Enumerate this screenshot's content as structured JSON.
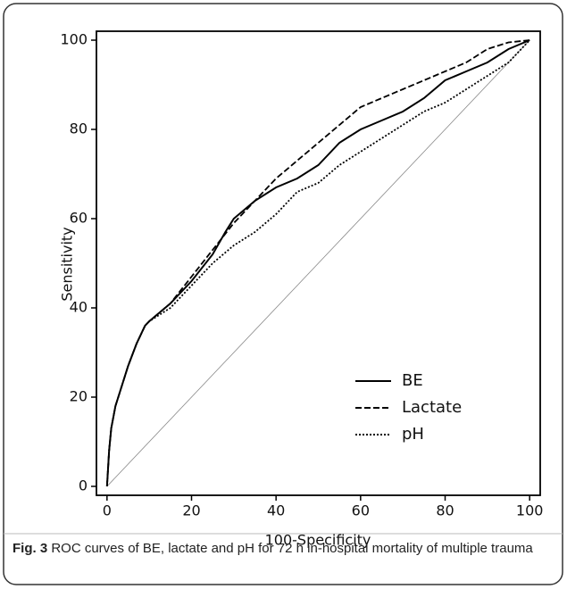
{
  "chart_data": {
    "type": "line",
    "xlabel": "100-Specificity",
    "ylabel": "Sensitivity",
    "xlim": [
      -2.5,
      102.5
    ],
    "ylim": [
      -2,
      102
    ],
    "xticks": [
      0,
      20,
      40,
      60,
      80,
      100
    ],
    "yticks": [
      0,
      20,
      40,
      60,
      80,
      100
    ],
    "legend": "lower right",
    "series": [
      {
        "name": "BE",
        "color": "#000000",
        "line_style": "solid",
        "x": [
          0,
          0.5,
          1,
          2,
          3,
          5,
          7,
          9,
          10,
          15,
          20,
          25,
          28,
          30,
          35,
          40,
          45,
          50,
          55,
          60,
          65,
          70,
          75,
          80,
          85,
          90,
          95,
          100
        ],
        "values": [
          0,
          8,
          13,
          18,
          21,
          27,
          32,
          36,
          37,
          41,
          46,
          52,
          57,
          60,
          64,
          67,
          69,
          72,
          77,
          80,
          82,
          84,
          87,
          91,
          93,
          95,
          98,
          100
        ]
      },
      {
        "name": "Lactate",
        "color": "#000000",
        "line_style": "dashed",
        "x": [
          0,
          0.5,
          1,
          2,
          3,
          5,
          7,
          9,
          10,
          15,
          20,
          25,
          30,
          35,
          40,
          45,
          50,
          55,
          60,
          65,
          70,
          75,
          80,
          85,
          90,
          95,
          100
        ],
        "values": [
          0,
          8,
          13,
          18,
          21,
          27,
          32,
          36,
          37,
          41,
          47,
          53,
          59,
          64,
          69,
          73,
          77,
          81,
          85,
          87,
          89,
          91,
          93,
          95,
          98,
          99.5,
          100
        ]
      },
      {
        "name": "pH",
        "color": "#000000",
        "line_style": "dotted",
        "x": [
          0,
          0.5,
          1,
          2,
          3,
          5,
          7,
          9,
          10,
          15,
          20,
          25,
          30,
          35,
          40,
          45,
          50,
          55,
          60,
          65,
          70,
          75,
          80,
          85,
          90,
          95,
          100
        ],
        "values": [
          0,
          8,
          13,
          18,
          21,
          27,
          32,
          36,
          37,
          40,
          45,
          50,
          54,
          57,
          61,
          66,
          68,
          72,
          75,
          78,
          81,
          84,
          86,
          89,
          92,
          95,
          100
        ]
      }
    ]
  },
  "caption": {
    "label": "Fig. 3",
    "text": "ROC curves of BE, lactate and pH for 72 h in-hospital mortality of multiple trauma"
  }
}
